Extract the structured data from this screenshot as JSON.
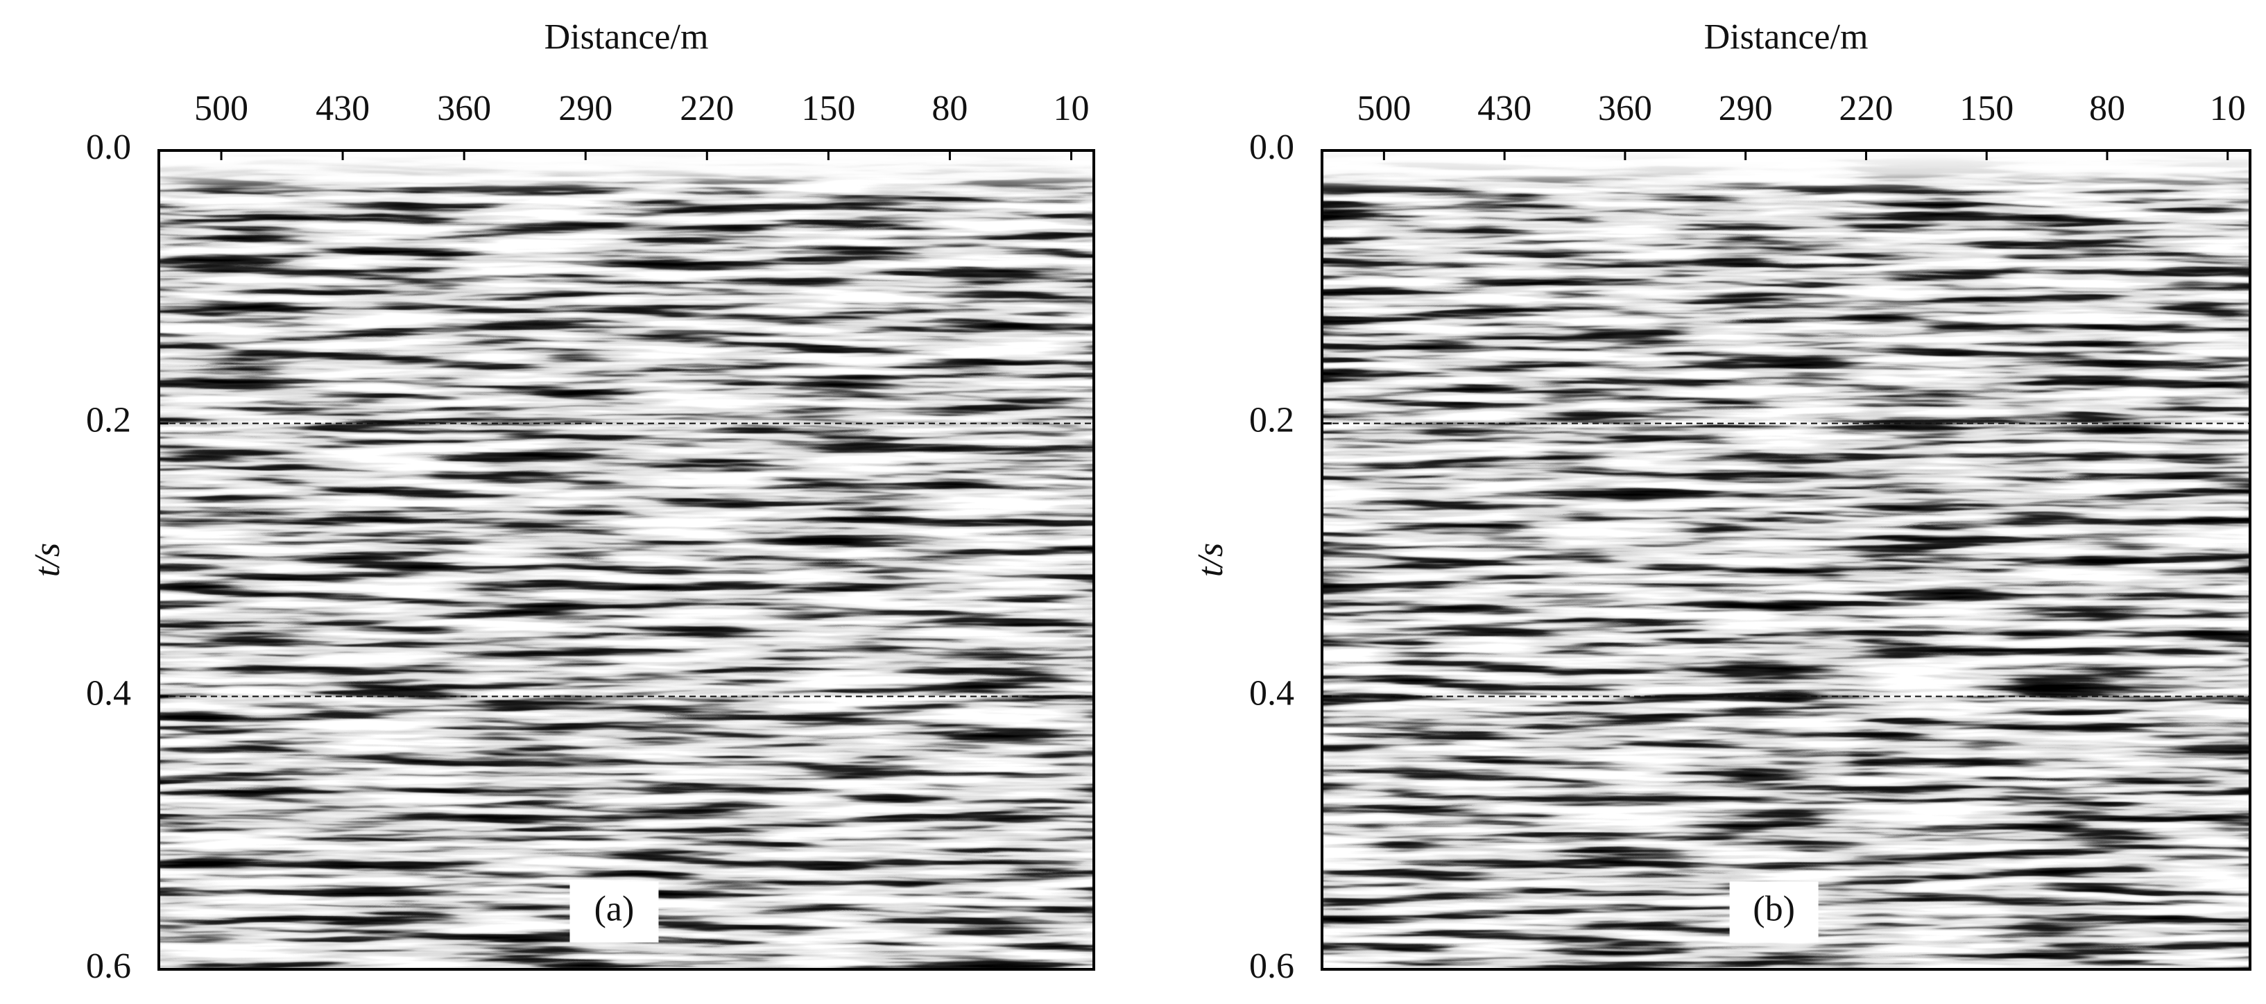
{
  "chart_data": [
    {
      "type": "seismic",
      "x_label": "Distance/m",
      "y_label": "t/s",
      "annotation": "(a)",
      "xlim": [
        536,
        -3
      ],
      "xticks": [
        500,
        430,
        360,
        290,
        220,
        150,
        80,
        10
      ],
      "ylim": [
        0,
        0.6
      ],
      "yticks": [
        {
          "value": 0,
          "label": "0.0"
        },
        0.2,
        0.4,
        0.6
      ],
      "grid": true,
      "grid_style": "dashed"
    },
    {
      "type": "seismic",
      "x_label": "Distance/m",
      "y_label": "t/s",
      "annotation": "(b)",
      "xlim": [
        536,
        -3
      ],
      "xticks": [
        500,
        430,
        360,
        290,
        220,
        150,
        80,
        10
      ],
      "ylim": [
        0,
        0.6
      ],
      "yticks": [
        {
          "value": 0,
          "label": "0.0"
        },
        0.2,
        0.4,
        0.6
      ],
      "grid": true,
      "grid_style": "dashed"
    }
  ]
}
